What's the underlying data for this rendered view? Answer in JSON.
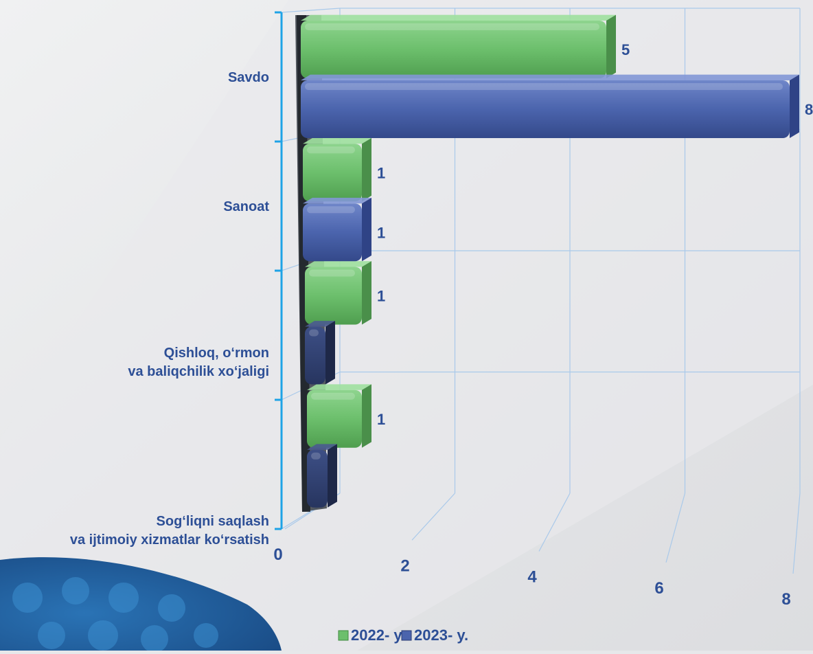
{
  "colors": {
    "series_2022": "#6cbf6c",
    "series_2023": "#4b64ad",
    "text": "#2d4f96",
    "grid": "#a9c9ea",
    "axis": "#1ea3e6"
  },
  "chart_data": {
    "type": "bar",
    "orientation": "horizontal",
    "title": "",
    "xlabel": "",
    "ylabel": "",
    "categories": [
      "Savdo",
      "Sanoat",
      "Qishloq, o‘rmon\nva baliqchilik xo‘jaligi",
      "Sog‘liqni saqlash\nva ijtimoiy xizmatlar ko‘rsatish"
    ],
    "series": [
      {
        "name": "2022- y.",
        "values": [
          5,
          1,
          1,
          1
        ],
        "labels": [
          "5",
          "1",
          "1",
          "1"
        ]
      },
      {
        "name": "2023- y.",
        "values": [
          8,
          1,
          0,
          0
        ],
        "labels": [
          "8",
          "1",
          "",
          ""
        ]
      }
    ],
    "xlim": [
      0,
      8
    ],
    "xticks": [
      "0",
      "2",
      "4",
      "6",
      "8"
    ],
    "grid": true,
    "legend_position": "bottom-center"
  }
}
